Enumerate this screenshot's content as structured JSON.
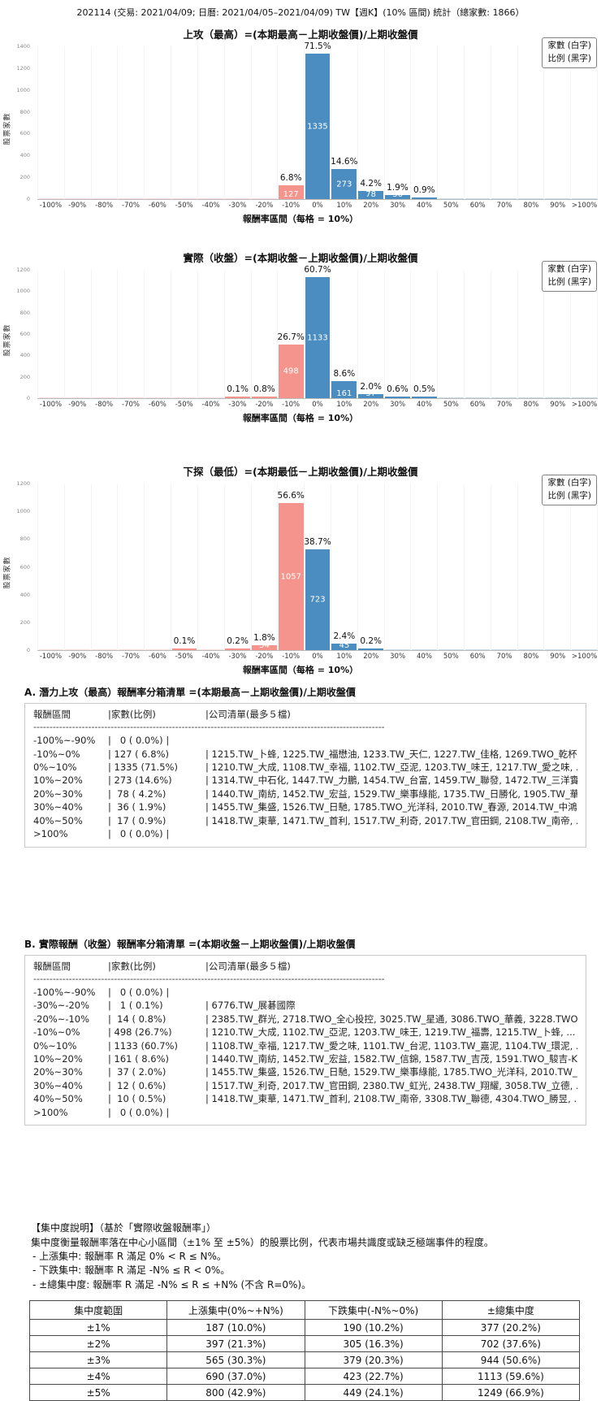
{
  "header": {
    "title": "202114 (交易: 2021/04/09; 日曆: 2021/04/05–2021/04/09) TW【週K】(10% 區間) 統計（總家數: 1866）"
  },
  "legend": {
    "line1": "家數 (白字)",
    "line2": "比例 (黑字)"
  },
  "colors": {
    "up_bar": "#4b8dc0",
    "down_bar": "#f4948c"
  },
  "chart_data": [
    {
      "type": "bar",
      "title": "上攻（最高）=(本期最高－上期收盤價)/上期收盤價",
      "xlabel": "報酬率區間（每格 = 10%）",
      "ylabel": "股票家數",
      "ylim": [
        0,
        1400
      ],
      "yticks": [
        0,
        200,
        400,
        600,
        800,
        1000,
        1200,
        1400
      ],
      "categories": [
        "-100%",
        "-90%",
        "-80%",
        "-70%",
        "-60%",
        "-50%",
        "-40%",
        "-30%",
        "-20%",
        "-10%",
        "0%",
        "10%",
        "20%",
        "30%",
        "40%",
        "50%",
        "60%",
        "70%",
        "80%",
        "90%",
        ">100%"
      ],
      "values": [
        0,
        0,
        0,
        0,
        0,
        0,
        0,
        0,
        0,
        127,
        1335,
        273,
        78,
        36,
        17,
        0,
        0,
        0,
        0,
        0,
        0
      ],
      "pct_labels": [
        "",
        "",
        "",
        "",
        "",
        "",
        "",
        "",
        "",
        "6.8%",
        "71.5%",
        "14.6%",
        "4.2%",
        "1.9%",
        "0.9%",
        "",
        "",
        "",
        "",
        "",
        ""
      ],
      "count_labels": [
        "",
        "",
        "",
        "",
        "",
        "",
        "",
        "",
        "",
        "127",
        "1335",
        "273",
        "78",
        "36",
        "",
        "",
        "",
        "",
        "",
        "",
        ""
      ]
    },
    {
      "type": "bar",
      "title": "實際（收盤）=(本期收盤－上期收盤價)/上期收盤價",
      "xlabel": "報酬率區間（每格 = 10%）",
      "ylabel": "股票家數",
      "ylim": [
        0,
        1200
      ],
      "yticks": [
        0,
        200,
        400,
        600,
        800,
        1000,
        1200
      ],
      "categories": [
        "-100%",
        "-90%",
        "-80%",
        "-70%",
        "-60%",
        "-50%",
        "-40%",
        "-30%",
        "-20%",
        "-10%",
        "0%",
        "10%",
        "20%",
        "30%",
        "40%",
        "50%",
        "60%",
        "70%",
        "80%",
        "90%",
        ">100%"
      ],
      "values": [
        0,
        0,
        0,
        0,
        0,
        0,
        0,
        1,
        14,
        498,
        1133,
        161,
        37,
        12,
        10,
        0,
        0,
        0,
        0,
        0,
        0
      ],
      "pct_labels": [
        "",
        "",
        "",
        "",
        "",
        "",
        "",
        "0.1%",
        "0.8%",
        "26.7%",
        "60.7%",
        "8.6%",
        "2.0%",
        "0.6%",
        "0.5%",
        "",
        "",
        "",
        "",
        "",
        ""
      ],
      "count_labels": [
        "",
        "",
        "",
        "",
        "",
        "",
        "",
        "",
        "",
        "498",
        "1133",
        "161",
        "37",
        "",
        "",
        "",
        "",
        "",
        "",
        "",
        ""
      ]
    },
    {
      "type": "bar",
      "title": "下探（最低）=(本期最低－上期收盤價)/上期收盤價",
      "xlabel": "報酬率區間（每格 = 10%）",
      "ylabel": "股票家數",
      "ylim": [
        0,
        1200
      ],
      "yticks": [
        0,
        200,
        400,
        600,
        800,
        1000,
        1200
      ],
      "categories": [
        "-100%",
        "-90%",
        "-80%",
        "-70%",
        "-60%",
        "-50%",
        "-40%",
        "-30%",
        "-20%",
        "-10%",
        "0%",
        "10%",
        "20%",
        "30%",
        "40%",
        "50%",
        "60%",
        "70%",
        "80%",
        "90%",
        ">100%"
      ],
      "values": [
        0,
        0,
        0,
        0,
        0,
        2,
        0,
        4,
        34,
        1057,
        723,
        45,
        4,
        0,
        0,
        0,
        0,
        0,
        0,
        0,
        0
      ],
      "pct_labels": [
        "",
        "",
        "",
        "",
        "",
        "0.1%",
        "",
        "0.2%",
        "1.8%",
        "56.6%",
        "38.7%",
        "2.4%",
        "0.2%",
        "",
        "",
        "",
        "",
        "",
        "",
        "",
        ""
      ],
      "count_labels": [
        "",
        "",
        "",
        "",
        "",
        "",
        "",
        "",
        "34",
        "1057",
        "723",
        "45",
        "",
        "",
        "",
        "",
        "",
        "",
        "",
        "",
        ""
      ]
    }
  ],
  "section_a": {
    "title": "A. 潛力上攻（最高）報酬率分箱清單 =(本期最高－上期收盤價)/上期收盤價",
    "header": {
      "range": "報酬區間",
      "count": "|家數(比例)",
      "companies": "|公司清單(最多５檔)"
    },
    "divider": "--------------------------------------------------------------------------------------------------------------",
    "rows": [
      {
        "range": "-100%~-90%",
        "count": "|   0 ( 0.0%) |",
        "companies": ""
      },
      {
        "range": "-10%~0%",
        "count": "| 127 ( 6.8%)",
        "companies": "| 1215.TW_卜蜂, 1225.TW_福懋油, 1233.TW_天仁, 1227.TW_佳格, 1269.TWO_乾杯, ... (共 127 檔)"
      },
      {
        "range": "0%~10%",
        "count": "| 1335 (71.5%)",
        "companies": "| 1210.TW_大成, 1108.TW_幸福, 1102.TW_亞泥, 1203.TW_味王, 1217.TW_愛之味, ... (共 1335 檔)"
      },
      {
        "range": "10%~20%",
        "count": "| 273 (14.6%)",
        "companies": "| 1314.TW_中石化, 1447.TW_力鵬, 1454.TW_台富, 1459.TW_聯發, 1472.TW_三洋實業, ... (共 273 檔)"
      },
      {
        "range": "20%~30%",
        "count": "|  78 ( 4.2%)",
        "companies": "| 1440.TW_南紡, 1452.TW_宏益, 1529.TW_樂事綠能, 1735.TW_日勝化, 1905.TW_華紙, ... (共 78 檔)"
      },
      {
        "range": "30%~40%",
        "count": "|  36 ( 1.9%)",
        "companies": "| 1455.TW_集盛, 1526.TW_日馳, 1785.TWO_光洋科, 2010.TW_春源, 2014.TW_中鴻, ... (共 36 檔)"
      },
      {
        "range": "40%~50%",
        "count": "|  17 ( 0.9%)",
        "companies": "| 1418.TW_東華, 1471.TW_首利, 1517.TW_利奇, 2017.TW_官田鋼, 2108.TW_南帝, ... (共 17 檔)"
      },
      {
        "range": ">100%",
        "count": "|   0 ( 0.0%) |",
        "companies": ""
      }
    ]
  },
  "section_b": {
    "title": "B. 實際報酬（收盤）報酬率分箱清單 =(本期收盤－上期收盤價)/上期收盤價",
    "header": {
      "range": "報酬區間",
      "count": "|家數(比例)",
      "companies": "|公司清單(最多５檔)"
    },
    "divider": "--------------------------------------------------------------------------------------------------------------",
    "rows": [
      {
        "range": "-100%~-90%",
        "count": "|   0 ( 0.0%) |",
        "companies": ""
      },
      {
        "range": "-30%~-20%",
        "count": "|   1 ( 0.1%)",
        "companies": "| 6776.TW_展碁國際"
      },
      {
        "range": "-20%~-10%",
        "count": "|  14 ( 0.8%)",
        "companies": "| 2385.TW_群光, 2718.TWO_全心投控, 3025.TW_星通, 3086.TWO_華義, 3228.TWO_金麗科, ... (共 14 檔)"
      },
      {
        "range": "-10%~0%",
        "count": "| 498 (26.7%)",
        "companies": "| 1210.TW_大成, 1102.TW_亞泥, 1203.TW_味王, 1219.TW_福壽, 1215.TW_卜蜂, ... (共 498 檔)"
      },
      {
        "range": "0%~10%",
        "count": "| 1133 (60.7%)",
        "companies": "| 1108.TW_幸福, 1217.TW_愛之味, 1101.TW_台泥, 1103.TW_嘉泥, 1104.TW_環泥, ... (共 1133 檔)"
      },
      {
        "range": "10%~20%",
        "count": "| 161 ( 8.6%)",
        "companies": "| 1440.TW_南紡, 1452.TW_宏益, 1582.TW_信錦, 1587.TW_吉茂, 1591.TWO_駿吉-KY, ... (共 161 檔)"
      },
      {
        "range": "20%~30%",
        "count": "|  37 ( 2.0%)",
        "companies": "| 1455.TW_集盛, 1526.TW_日馳, 1529.TW_樂事綠能, 1785.TWO_光洋科, 2010.TW_春源, ... (共 37 檔)"
      },
      {
        "range": "30%~40%",
        "count": "|  12 ( 0.6%)",
        "companies": "| 1517.TW_利奇, 2017.TW_官田鋼, 2380.TW_虹光, 2438.TW_翔耀, 3058.TW_立德, ... (共 12 檔)"
      },
      {
        "range": "40%~50%",
        "count": "|  10 ( 0.5%)",
        "companies": "| 1418.TW_東華, 1471.TW_首利, 2108.TW_南帝, 3308.TW_聯德, 4304.TWO_勝昱, ... (共 10 檔)"
      },
      {
        "range": ">100%",
        "count": "|   0 ( 0.0%) |",
        "companies": ""
      }
    ]
  },
  "conc": {
    "line1": "【集中度說明】（基於「實際收盤報酬率」）",
    "line2": "集中度衡量報酬率落在中心小區間（±1% 至 ±5%）的股票比例，代表市場共識度或缺乏極端事件的程度。",
    "bullets": [
      "- 上漲集中: 報酬率 R 滿足 0% < R ≤ N%。",
      "- 下跌集中: 報酬率 R 滿足 -N% ≤ R < 0%。",
      "- ±總集中度: 報酬率 R 滿足 -N% ≤ R ≤ +N% (不含 R=0%)。"
    ],
    "table": {
      "headers": [
        "集中度範圍",
        "上漲集中(0%~+N%)",
        "下跌集中(-N%~0%)",
        "±總集中度"
      ],
      "rows": [
        [
          "±1%",
          "187 (10.0%)",
          "190 (10.2%)",
          "377 (20.2%)"
        ],
        [
          "±2%",
          "397 (21.3%)",
          "305 (16.3%)",
          "702 (37.6%)"
        ],
        [
          "±3%",
          "565 (30.3%)",
          "379 (20.3%)",
          "944 (50.6%)"
        ],
        [
          "±4%",
          "690 (37.0%)",
          "423 (22.7%)",
          "1113 (59.6%)"
        ],
        [
          "±5%",
          "800 (42.9%)",
          "449 (24.1%)",
          "1249 (66.9%)"
        ]
      ]
    }
  }
}
